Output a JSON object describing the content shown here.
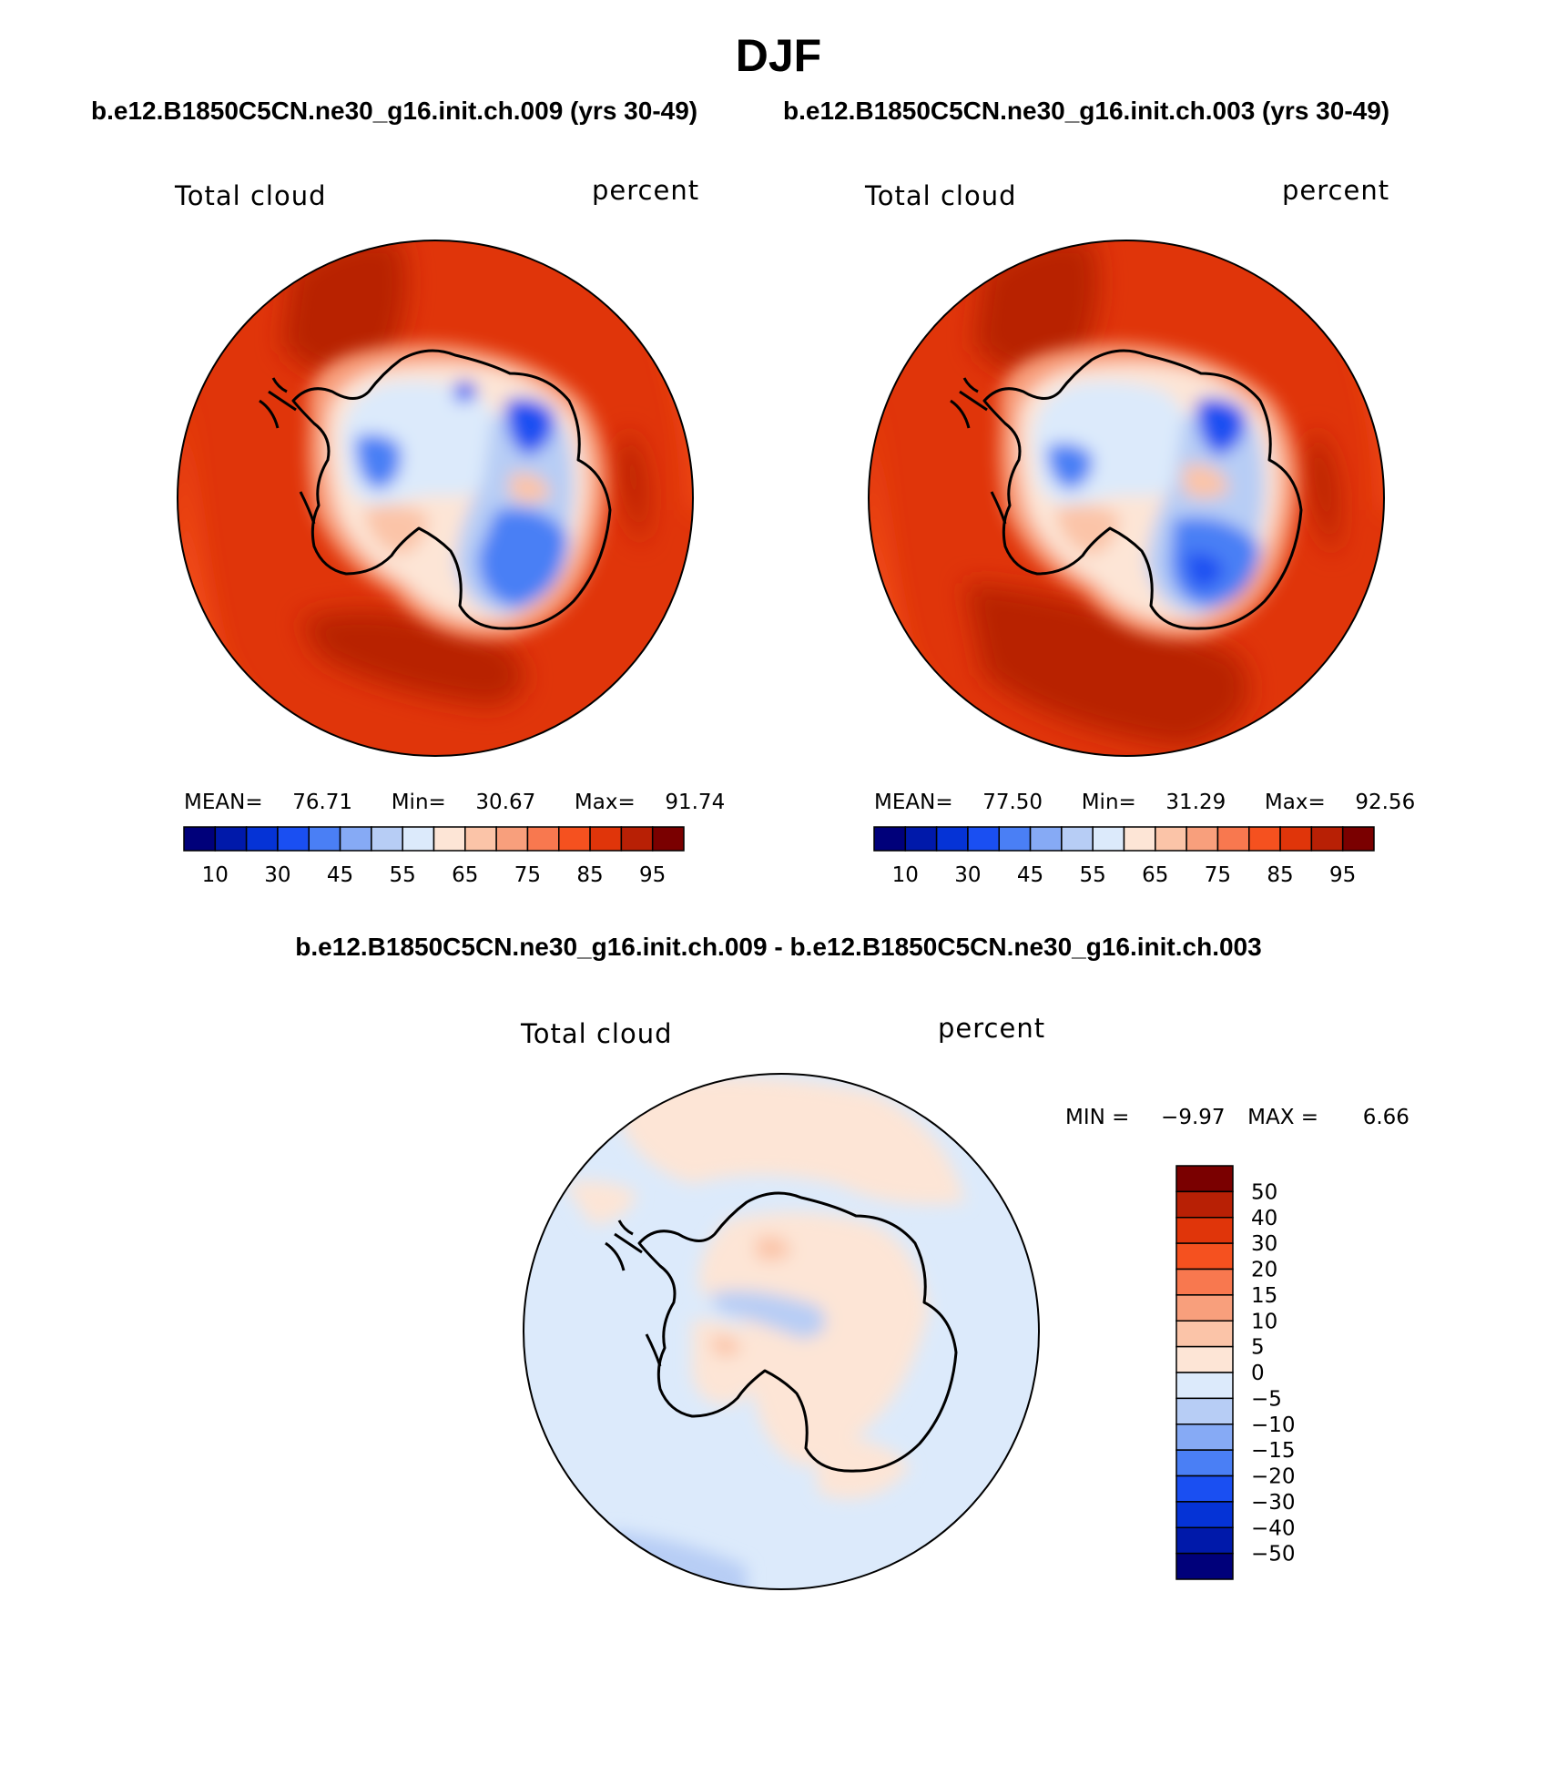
{
  "figure": {
    "season_title": "DJF",
    "case_a_title": "b.e12.B1850C5CN.ne30_g16.init.ch.009 (yrs 30-49)",
    "case_b_title": "b.e12.B1850C5CN.ne30_g16.init.ch.003 (yrs 30-49)",
    "diff_title": "b.e12.B1850C5CN.ne30_g16.init.ch.009 - b.e12.B1850C5CN.ne30_g16.init.ch.003"
  },
  "colors": {
    "abs_scale": [
      "#00007a",
      "#0019aa",
      "#0533d6",
      "#1a4ff2",
      "#4a7ff5",
      "#86aaf5",
      "#b7cdf5",
      "#dceafb",
      "#fde5d6",
      "#fbc4a8",
      "#f89f7c",
      "#f8784f",
      "#f5511f",
      "#e0350a",
      "#b82005",
      "#7a0000"
    ],
    "diff_scale": [
      "#00007a",
      "#0019aa",
      "#0533d6",
      "#1a4ff2",
      "#4a7ff5",
      "#86aaf5",
      "#b7cdf5",
      "#dceafb",
      "#fde5d6",
      "#fbc4a8",
      "#f89f7c",
      "#f8784f",
      "#f5511f",
      "#e0350a",
      "#b82005",
      "#7a0000"
    ]
  },
  "panels": [
    {
      "left_label": "Total cloud",
      "right_label": "percent",
      "mean_label": "MEAN=",
      "mean_value": "76.71",
      "min_label": "Min=",
      "min_value": "30.67",
      "max_label": "Max=",
      "max_value": "91.74"
    },
    {
      "left_label": "Total cloud",
      "right_label": "percent",
      "mean_label": "MEAN=",
      "mean_value": "77.50",
      "min_label": "Min=",
      "min_value": "31.29",
      "max_label": "Max=",
      "max_value": "92.56"
    }
  ],
  "diff_panel": {
    "left_label": "Total cloud",
    "right_label": "percent",
    "min_label": "MIN =",
    "min_value": "−9.97",
    "max_label": "MAX =",
    "max_value": "6.66"
  },
  "chart_data": [
    {
      "type": "heatmap",
      "title": "b.e12.B1850C5CN.ne30_g16.init.ch.009 (yrs 30-49)",
      "variable": "Total cloud",
      "units": "percent",
      "projection": "polar stereographic (Southern Hemisphere)",
      "mean": 76.71,
      "min": 30.67,
      "max": 91.74,
      "colorbar_levels": [
        10,
        20,
        30,
        40,
        45,
        50,
        55,
        60,
        65,
        70,
        75,
        80,
        85,
        90,
        95
      ],
      "colorbar_tick_labels": [
        "10",
        "30",
        "45",
        "55",
        "65",
        "75",
        "85",
        "95"
      ]
    },
    {
      "type": "heatmap",
      "title": "b.e12.B1850C5CN.ne30_g16.init.ch.003 (yrs 30-49)",
      "variable": "Total cloud",
      "units": "percent",
      "projection": "polar stereographic (Southern Hemisphere)",
      "mean": 77.5,
      "min": 31.29,
      "max": 92.56,
      "colorbar_levels": [
        10,
        20,
        30,
        40,
        45,
        50,
        55,
        60,
        65,
        70,
        75,
        80,
        85,
        90,
        95
      ],
      "colorbar_tick_labels": [
        "10",
        "30",
        "45",
        "55",
        "65",
        "75",
        "85",
        "95"
      ]
    },
    {
      "type": "heatmap",
      "title": "b.e12.B1850C5CN.ne30_g16.init.ch.009 - b.e12.B1850C5CN.ne30_g16.init.ch.003",
      "variable": "Total cloud",
      "units": "percent",
      "min": -9.97,
      "max": 6.66,
      "colorbar_levels": [
        -50,
        -40,
        -30,
        -20,
        -15,
        -10,
        -5,
        0,
        5,
        10,
        15,
        20,
        30,
        40,
        50
      ],
      "colorbar_tick_labels": [
        "50",
        "40",
        "30",
        "20",
        "15",
        "10",
        "5",
        "0",
        "−5",
        "−10",
        "−15",
        "−20",
        "−30",
        "−40",
        "−50"
      ]
    }
  ]
}
